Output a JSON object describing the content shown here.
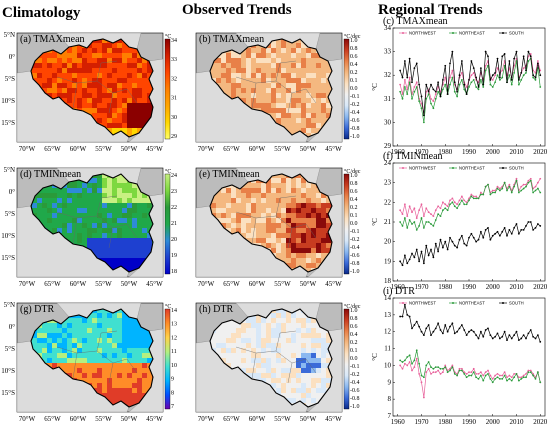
{
  "headers": {
    "col1": "Climatology",
    "col2": "Observed Trends",
    "col3": "Regional Trends"
  },
  "maps": {
    "panels": [
      {
        "id": "a",
        "label": "(a) TMAXmean",
        "kind": "clim",
        "variable": "TMAX"
      },
      {
        "id": "b",
        "label": "(b) TMAXmean",
        "kind": "trend",
        "variable": "TMAX"
      },
      {
        "id": "d",
        "label": "(d) TMINmean",
        "kind": "clim",
        "variable": "TMIN"
      },
      {
        "id": "e",
        "label": "(e) TMINmean",
        "kind": "trend",
        "variable": "TMIN"
      },
      {
        "id": "g",
        "label": "(g) DTR",
        "kind": "clim",
        "variable": "DTR"
      },
      {
        "id": "h",
        "label": "(h) DTR",
        "kind": "trend",
        "variable": "DTR"
      }
    ],
    "lat_labels": [
      "5°N",
      "0°",
      "5°S",
      "10°S",
      "15°S"
    ],
    "lon_labels": [
      "70°W",
      "65°W",
      "60°W",
      "55°W",
      "50°W",
      "45°W"
    ],
    "colorbars": {
      "a": {
        "unit": "°C",
        "ticks": [
          "34",
          "33",
          "32",
          "31",
          "30",
          "29"
        ]
      },
      "d": {
        "unit": "°C",
        "ticks": [
          "24",
          "23",
          "22",
          "21",
          "20",
          "19",
          "18"
        ]
      },
      "g": {
        "unit": "°C",
        "ticks": [
          "14",
          "13",
          "12",
          "11",
          "10",
          "9",
          "8",
          "7"
        ]
      },
      "trend": {
        "unit": "°C/dec",
        "ticks": [
          "1.0",
          "0.8",
          "0.6",
          "0.4",
          "0.2",
          "0.1",
          "0.0",
          "-0.1",
          "-0.2",
          "-0.4",
          "-0.6",
          "-0.8",
          "-1.0"
        ]
      }
    },
    "colors": {
      "tmax_scale": [
        "#ffff66",
        "#ffd700",
        "#ffa500",
        "#ff7f00",
        "#ff4500",
        "#d41f00",
        "#8b0000"
      ],
      "tmin_scale": [
        "#0000c8",
        "#1e40d0",
        "#2e8bd8",
        "#20a84a",
        "#2a9a3a",
        "#7dd840",
        "#c8f082"
      ],
      "dtr_scale": [
        "#6a00b0",
        "#0050ff",
        "#00b4ff",
        "#40e0d0",
        "#b4f080",
        "#ffd24a",
        "#ff8c28",
        "#e03c28"
      ],
      "trend_scale": [
        "#0a2a8a",
        "#3a6ad8",
        "#8ab8f0",
        "#d8e8f8",
        "#f0f0f0",
        "#fbe0c0",
        "#f4b880",
        "#e88048",
        "#c83c20",
        "#8a0a0a"
      ],
      "ocean": "#bcbcbc",
      "land_outside": "#dcdcdc"
    }
  },
  "chart_data": [
    {
      "id": "c",
      "type": "line",
      "title": "(c) TMAXmean",
      "ylabel": "°C",
      "xlim": [
        1958,
        2022
      ],
      "ylim": [
        29,
        34
      ],
      "xticks": [
        "1960",
        "1970",
        "1980",
        "1990",
        "2000",
        "2010",
        "2020"
      ],
      "yticks": [
        "29",
        "30",
        "31",
        "32",
        "33",
        "34"
      ],
      "x": [
        1961,
        1962,
        1963,
        1964,
        1965,
        1966,
        1967,
        1968,
        1969,
        1970,
        1971,
        1972,
        1973,
        1974,
        1975,
        1976,
        1977,
        1978,
        1979,
        1980,
        1981,
        1982,
        1983,
        1984,
        1985,
        1986,
        1987,
        1988,
        1989,
        1990,
        1991,
        1992,
        1993,
        1994,
        1995,
        1996,
        1997,
        1998,
        1999,
        2000,
        2001,
        2002,
        2003,
        2004,
        2005,
        2006,
        2007,
        2008,
        2009,
        2010,
        2011,
        2012,
        2013,
        2014,
        2015,
        2016,
        2017,
        2018,
        2019,
        2020
      ],
      "series": [
        {
          "name": "NORTHWEST",
          "color": "#e8609a",
          "values": [
            31.6,
            31.2,
            31.8,
            31.4,
            31.9,
            31.2,
            31.5,
            31.7,
            31.0,
            30.8,
            30.4,
            31.3,
            31.4,
            31.0,
            30.9,
            31.2,
            31.5,
            31.3,
            31.6,
            31.9,
            31.5,
            31.9,
            32.2,
            31.6,
            31.4,
            31.9,
            32.1,
            31.7,
            31.5,
            31.8,
            32.0,
            32.1,
            31.8,
            31.7,
            32.1,
            31.8,
            32.4,
            32.6,
            31.9,
            31.8,
            32.0,
            32.3,
            32.1,
            32.2,
            32.6,
            32.0,
            32.3,
            31.9,
            32.4,
            32.7,
            31.9,
            32.1,
            32.3,
            32.4,
            32.8,
            32.9,
            32.2,
            32.1,
            32.6,
            32.2
          ]
        },
        {
          "name": "NORTHEAST",
          "color": "#2a9a3a",
          "values": [
            31.3,
            31.0,
            31.5,
            31.2,
            31.7,
            31.0,
            31.3,
            31.5,
            30.9,
            30.6,
            30.0,
            31.0,
            31.2,
            30.8,
            30.6,
            31.0,
            31.3,
            31.1,
            31.4,
            31.6,
            31.2,
            31.6,
            31.9,
            31.3,
            31.1,
            31.6,
            31.8,
            31.4,
            31.2,
            31.5,
            31.7,
            31.8,
            31.5,
            31.4,
            31.8,
            31.5,
            32.2,
            32.4,
            31.6,
            31.5,
            31.7,
            32.0,
            31.8,
            31.9,
            32.4,
            31.7,
            32.0,
            31.6,
            32.1,
            32.6,
            31.6,
            31.8,
            32.0,
            32.1,
            32.6,
            32.7,
            31.9,
            31.8,
            32.3,
            31.5
          ]
        },
        {
          "name": "SOUTH",
          "color": "#000000",
          "values": [
            32.2,
            31.9,
            32.6,
            31.9,
            32.7,
            31.7,
            32.3,
            32.5,
            31.6,
            31.1,
            30.3,
            31.6,
            31.3,
            31.6,
            31.4,
            31.3,
            31.7,
            31.1,
            31.8,
            32.4,
            31.2,
            32.5,
            33.0,
            31.7,
            31.3,
            32.0,
            32.6,
            31.6,
            31.2,
            31.8,
            32.6,
            32.3,
            31.9,
            31.5,
            32.3,
            31.6,
            33.0,
            32.8,
            31.8,
            32.0,
            32.1,
            32.7,
            31.9,
            32.8,
            32.9,
            31.7,
            32.6,
            31.8,
            32.7,
            33.0,
            31.8,
            32.1,
            32.8,
            32.2,
            33.0,
            32.8,
            32.0,
            31.9,
            32.5,
            32.0
          ]
        }
      ]
    },
    {
      "id": "f",
      "type": "line",
      "title": "(f) TMINmean",
      "ylabel": "°C",
      "xlim": [
        1958,
        2022
      ],
      "ylim": [
        18,
        24
      ],
      "xticks": [
        "1960",
        "1970",
        "1980",
        "1990",
        "2000",
        "2010",
        "2020"
      ],
      "yticks": [
        "18",
        "19",
        "20",
        "21",
        "22",
        "23",
        "24"
      ],
      "x": [
        1961,
        1962,
        1963,
        1964,
        1965,
        1966,
        1967,
        1968,
        1969,
        1970,
        1971,
        1972,
        1973,
        1974,
        1975,
        1976,
        1977,
        1978,
        1979,
        1980,
        1981,
        1982,
        1983,
        1984,
        1985,
        1986,
        1987,
        1988,
        1989,
        1990,
        1991,
        1992,
        1993,
        1994,
        1995,
        1996,
        1997,
        1998,
        1999,
        2000,
        2001,
        2002,
        2003,
        2004,
        2005,
        2006,
        2007,
        2008,
        2009,
        2010,
        2011,
        2012,
        2013,
        2014,
        2015,
        2016,
        2017,
        2018,
        2019,
        2020
      ],
      "series": [
        {
          "name": "NORTHWEST",
          "color": "#e8609a",
          "values": [
            21.6,
            21.4,
            21.9,
            21.3,
            21.8,
            21.5,
            21.7,
            21.2,
            21.6,
            21.9,
            21.3,
            21.7,
            21.5,
            21.4,
            21.3,
            21.6,
            21.8,
            21.7,
            22.0,
            21.9,
            21.8,
            22.1,
            22.2,
            22.0,
            21.9,
            22.1,
            22.3,
            22.1,
            22.0,
            22.2,
            22.4,
            22.3,
            22.3,
            22.2,
            22.5,
            22.4,
            22.8,
            22.9,
            22.5,
            22.6,
            22.6,
            22.8,
            22.7,
            22.8,
            23.0,
            22.7,
            22.9,
            22.6,
            22.9,
            23.2,
            22.6,
            22.8,
            22.9,
            22.9,
            23.1,
            23.2,
            22.7,
            22.8,
            23.0,
            23.2
          ]
        },
        {
          "name": "NORTHEAST",
          "color": "#2a9a3a",
          "values": [
            21.0,
            20.8,
            21.2,
            20.7,
            21.1,
            20.9,
            21.0,
            20.6,
            20.8,
            21.2,
            20.7,
            21.0,
            21.0,
            20.9,
            20.8,
            21.1,
            21.4,
            21.3,
            21.6,
            21.7,
            21.6,
            21.9,
            22.0,
            21.8,
            21.7,
            21.9,
            22.1,
            21.9,
            21.9,
            22.1,
            22.3,
            22.2,
            22.2,
            22.2,
            22.4,
            22.4,
            22.8,
            22.9,
            22.4,
            22.5,
            22.5,
            22.7,
            22.6,
            22.7,
            23.0,
            22.6,
            22.8,
            22.5,
            22.8,
            23.1,
            22.5,
            22.6,
            22.7,
            22.8,
            23.0,
            23.1,
            22.5,
            22.6,
            22.7,
            22.5
          ]
        },
        {
          "name": "SOUTH",
          "color": "#000000",
          "values": [
            19.0,
            18.8,
            19.3,
            18.9,
            19.1,
            19.4,
            19.2,
            19.6,
            19.0,
            19.5,
            18.9,
            19.8,
            19.3,
            19.6,
            19.2,
            19.9,
            19.5,
            20.1,
            19.7,
            20.0,
            19.6,
            20.2,
            20.0,
            19.8,
            19.7,
            20.1,
            20.3,
            19.9,
            19.8,
            20.2,
            20.4,
            20.2,
            20.0,
            20.1,
            20.5,
            20.2,
            20.6,
            20.7,
            20.1,
            20.3,
            20.4,
            20.5,
            20.3,
            20.5,
            20.7,
            20.3,
            20.6,
            20.4,
            20.7,
            20.9,
            20.4,
            20.6,
            20.6,
            20.8,
            21.0,
            21.0,
            20.6,
            20.7,
            20.9,
            20.8
          ]
        }
      ]
    },
    {
      "id": "i",
      "type": "line",
      "title": "(i) DTR",
      "ylabel": "°C",
      "xlim": [
        1958,
        2022
      ],
      "ylim": [
        7,
        14
      ],
      "xticks": [
        "1960",
        "1970",
        "1980",
        "1990",
        "2000",
        "2010",
        "2020"
      ],
      "yticks": [
        "7",
        "8",
        "9",
        "10",
        "11",
        "12",
        "13",
        "14"
      ],
      "x": [
        1961,
        1962,
        1963,
        1964,
        1965,
        1966,
        1967,
        1968,
        1969,
        1970,
        1971,
        1972,
        1973,
        1974,
        1975,
        1976,
        1977,
        1978,
        1979,
        1980,
        1981,
        1982,
        1983,
        1984,
        1985,
        1986,
        1987,
        1988,
        1989,
        1990,
        1991,
        1992,
        1993,
        1994,
        1995,
        1996,
        1997,
        1998,
        1999,
        2000,
        2001,
        2002,
        2003,
        2004,
        2005,
        2006,
        2007,
        2008,
        2009,
        2010,
        2011,
        2012,
        2013,
        2014,
        2015,
        2016,
        2017,
        2018,
        2019,
        2020
      ],
      "series": [
        {
          "name": "NORTHWEST",
          "color": "#e8609a",
          "values": [
            10.0,
            9.8,
            10.1,
            10.0,
            10.2,
            9.7,
            9.9,
            10.4,
            9.5,
            9.0,
            8.1,
            9.6,
            9.8,
            9.5,
            9.6,
            9.6,
            9.7,
            9.5,
            9.6,
            10.0,
            9.7,
            9.8,
            10.0,
            9.6,
            9.5,
            9.8,
            9.8,
            9.6,
            9.5,
            9.6,
            9.6,
            9.8,
            9.5,
            9.5,
            9.6,
            9.4,
            9.6,
            9.7,
            9.4,
            9.2,
            9.4,
            9.5,
            9.4,
            9.4,
            9.6,
            9.3,
            9.4,
            9.3,
            9.5,
            9.5,
            9.3,
            9.3,
            9.4,
            9.5,
            9.7,
            9.7,
            9.5,
            9.3,
            9.6,
            9.0
          ]
        },
        {
          "name": "NORTHEAST",
          "color": "#2a9a3a",
          "values": [
            10.3,
            10.2,
            10.3,
            10.5,
            10.6,
            10.1,
            10.3,
            10.9,
            10.1,
            9.4,
            9.3,
            10.0,
            10.2,
            9.9,
            9.8,
            9.9,
            9.9,
            9.8,
            9.8,
            9.9,
            9.6,
            9.7,
            9.9,
            9.5,
            9.4,
            9.7,
            9.7,
            9.5,
            9.3,
            9.4,
            9.4,
            9.6,
            9.3,
            9.2,
            9.4,
            9.1,
            9.4,
            9.5,
            9.2,
            9.0,
            9.2,
            9.3,
            9.2,
            9.2,
            9.4,
            9.1,
            9.2,
            9.1,
            9.3,
            9.5,
            9.1,
            9.2,
            9.3,
            9.3,
            9.6,
            9.6,
            9.4,
            9.2,
            9.6,
            9.0
          ]
        },
        {
          "name": "SOUTH",
          "color": "#000000",
          "values": [
            12.9,
            12.9,
            13.6,
            13.0,
            12.9,
            12.2,
            12.4,
            12.6,
            12.3,
            12.0,
            11.8,
            12.2,
            12.4,
            11.8,
            12.0,
            12.2,
            12.5,
            12.1,
            11.9,
            12.4,
            12.0,
            12.3,
            12.5,
            11.9,
            12.0,
            12.2,
            12.4,
            12.1,
            11.8,
            12.0,
            12.1,
            12.0,
            11.8,
            11.6,
            12.0,
            11.7,
            12.1,
            12.2,
            11.8,
            11.6,
            11.7,
            11.9,
            11.6,
            11.7,
            12.0,
            11.5,
            11.8,
            11.6,
            11.8,
            12.0,
            11.5,
            11.6,
            11.8,
            11.6,
            11.9,
            12.1,
            11.7,
            11.6,
            11.8,
            11.4
          ]
        }
      ]
    }
  ]
}
